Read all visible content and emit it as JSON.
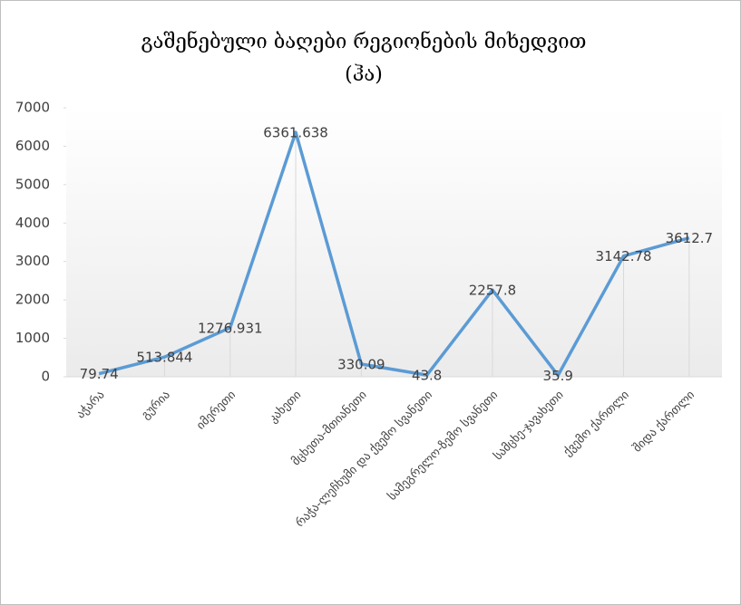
{
  "chart_data": {
    "type": "line",
    "title": "გაშენებული ბაღები რეგიონების მიხედვით (ჰა)",
    "categories": [
      "აჭარა",
      "გურია",
      "იმერეთი",
      "კახეთი",
      "მცხეთა-მთიანეთი",
      "რაჭა-ლეჩხუმი და ქვემო სვანეთი",
      "სამეგრელო-ზემო სვანეთი",
      "სამცხე-ჯავახეთი",
      "ქვემო ქართლი",
      "შიდა ქართლი"
    ],
    "values": [
      79.74,
      513.844,
      1276.931,
      6361.638,
      330.09,
      43.8,
      2257.8,
      35.9,
      3142.78,
      3612.7
    ],
    "color": "#5b9bd5",
    "ylim": [
      0,
      7000
    ],
    "yticks": [
      0,
      1000,
      2000,
      3000,
      4000,
      5000,
      6000,
      7000
    ],
    "drop_lines": true
  }
}
